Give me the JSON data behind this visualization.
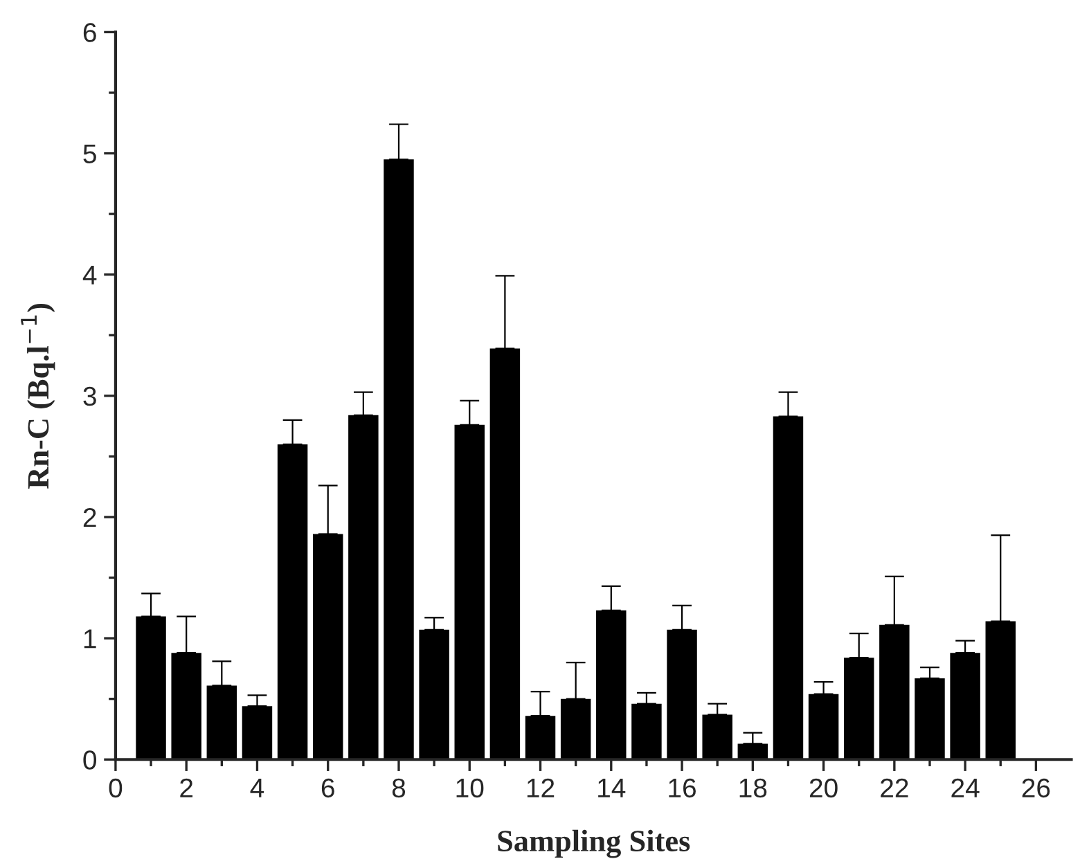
{
  "chart_data": {
    "type": "bar",
    "xlabel": "Sampling Sites",
    "ylabel": "Rn-C (Bq.l$^{−1}$)",
    "x": [
      1,
      2,
      3,
      4,
      5,
      6,
      7,
      8,
      9,
      10,
      11,
      12,
      13,
      14,
      15,
      16,
      17,
      18,
      19,
      20,
      21,
      22,
      23,
      24,
      25
    ],
    "values": [
      1.18,
      0.88,
      0.61,
      0.44,
      2.6,
      1.86,
      2.84,
      4.95,
      1.07,
      2.76,
      3.39,
      0.36,
      0.5,
      1.23,
      0.46,
      1.07,
      0.37,
      0.13,
      2.83,
      0.54,
      0.84,
      1.11,
      0.67,
      0.88,
      1.14
    ],
    "errors": [
      [
        1.18,
        1.37
      ],
      [
        0.88,
        1.18
      ],
      [
        0.61,
        0.81
      ],
      [
        0.44,
        0.53
      ],
      [
        2.6,
        2.8
      ],
      [
        1.86,
        2.26
      ],
      [
        2.84,
        3.03
      ],
      [
        4.95,
        5.24
      ],
      [
        1.07,
        1.17
      ],
      [
        2.76,
        2.96
      ],
      [
        3.39,
        3.99
      ],
      [
        0.36,
        0.56
      ],
      [
        0.5,
        0.8
      ],
      [
        1.23,
        1.43
      ],
      [
        0.46,
        0.55
      ],
      [
        1.07,
        1.27
      ],
      [
        0.37,
        0.46
      ],
      [
        0.13,
        0.22
      ],
      [
        2.83,
        3.03
      ],
      [
        0.54,
        0.64
      ],
      [
        0.84,
        1.04
      ],
      [
        1.11,
        1.51
      ],
      [
        0.67,
        0.76
      ],
      [
        0.88,
        0.98
      ],
      [
        1.14,
        1.85
      ]
    ],
    "color": "#000000",
    "xlim": [
      0,
      27
    ],
    "xticks": [
      0,
      {
        "value": 1,
        "label": null
      },
      2,
      {
        "value": 3,
        "label": null
      },
      4,
      {
        "value": 5,
        "label": null
      },
      6,
      {
        "value": 7,
        "label": null
      },
      8,
      {
        "value": 9,
        "label": null
      },
      10,
      {
        "value": 11,
        "label": null
      },
      12,
      {
        "value": 13,
        "label": null
      },
      14,
      {
        "value": 15,
        "label": null
      },
      16,
      {
        "value": 17,
        "label": null
      },
      18,
      {
        "value": 19,
        "label": null
      },
      20,
      {
        "value": 21,
        "label": null
      },
      22,
      {
        "value": 23,
        "label": null
      },
      24,
      {
        "value": 25,
        "label": null
      },
      26
    ],
    "ylim": [
      0,
      6
    ],
    "yticks": [
      0,
      {
        "value": 0.5,
        "label": null
      },
      1,
      {
        "value": 1.5,
        "label": null
      },
      2,
      {
        "value": 2.5,
        "label": null
      },
      3,
      {
        "value": 3.5,
        "label": null
      },
      4,
      {
        "value": 4.5,
        "label": null
      },
      5,
      {
        "value": 5.5,
        "label": null
      },
      6
    ],
    "grid": false,
    "legend": false
  }
}
